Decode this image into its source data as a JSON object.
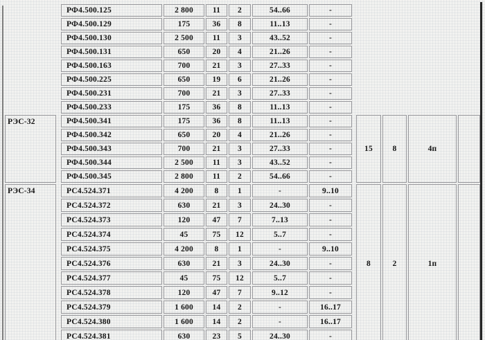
{
  "page": {
    "background": "#f2f2f0",
    "cell_border_color": "#98989c",
    "text_color": "#151515",
    "left_edge_color": "#7d7d7d",
    "right_edge_color": "#262626"
  },
  "table": {
    "sections": [
      {
        "type_label": "",
        "merged": [
          "",
          "",
          "",
          ""
        ],
        "rows": [
          [
            "РФ4.500.125",
            "2 800",
            "11",
            "2",
            "54..66",
            "-"
          ],
          [
            "РФ4.500.129",
            "175",
            "36",
            "8",
            "11..13",
            "-"
          ],
          [
            "РФ4.500.130",
            "2 500",
            "11",
            "3",
            "43..52",
            "-"
          ],
          [
            "РФ4.500.131",
            "650",
            "20",
            "4",
            "21..26",
            "-"
          ],
          [
            "РФ4.500.163",
            "700",
            "21",
            "3",
            "27..33",
            "-"
          ],
          [
            "РФ4.500.225",
            "650",
            "19",
            "6",
            "21..26",
            "-"
          ],
          [
            "РФ4.500.231",
            "700",
            "21",
            "3",
            "27..33",
            "-"
          ],
          [
            "РФ4.500.233",
            "175",
            "36",
            "8",
            "11..13",
            "-"
          ]
        ]
      },
      {
        "type_label": "РЭС-32",
        "merged": [
          "15",
          "8",
          "4п",
          ""
        ],
        "rows": [
          [
            "РФ4.500.341",
            "175",
            "36",
            "8",
            "11..13",
            "-"
          ],
          [
            "РФ4.500.342",
            "650",
            "20",
            "4",
            "21..26",
            "-"
          ],
          [
            "РФ4.500.343",
            "700",
            "21",
            "3",
            "27..33",
            "-"
          ],
          [
            "РФ4.500.344",
            "2 500",
            "11",
            "3",
            "43..52",
            "-"
          ],
          [
            "РФ4.500.345",
            "2 800",
            "11",
            "2",
            "54..66",
            "-"
          ]
        ]
      },
      {
        "type_label": "РЭС-34",
        "merged": [
          "8",
          "2",
          "1п",
          ""
        ],
        "rows": [
          [
            "РС4.524.371",
            "4 200",
            "8",
            "1",
            "-",
            "9..10"
          ],
          [
            "РС4.524.372",
            "630",
            "21",
            "3",
            "24..30",
            "-"
          ],
          [
            "РС4.524.373",
            "120",
            "47",
            "7",
            "7..13",
            "-"
          ],
          [
            "РС4.524.374",
            "45",
            "75",
            "12",
            "5..7",
            "-"
          ],
          [
            "РС4.524.375",
            "4 200",
            "8",
            "1",
            "-",
            "9..10"
          ],
          [
            "РС4.524.376",
            "630",
            "21",
            "3",
            "24..30",
            "-"
          ],
          [
            "РС4.524.377",
            "45",
            "75",
            "12",
            "5..7",
            "-"
          ],
          [
            "РС4.524.378",
            "120",
            "47",
            "7",
            "9..12",
            "-"
          ],
          [
            "РС4.524.379",
            "1 600",
            "14",
            "2",
            "-",
            "16..17"
          ],
          [
            "РС4.524.380",
            "1 600",
            "14",
            "2",
            "-",
            "16..17"
          ],
          [
            "РС4.524.381",
            "630",
            "23",
            "5",
            "24..30",
            "-"
          ]
        ]
      }
    ]
  }
}
